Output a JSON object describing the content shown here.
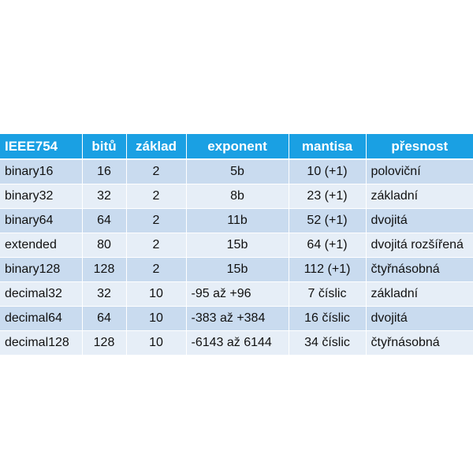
{
  "table": {
    "headers": [
      "IEEE754",
      "bitů",
      "základ",
      "exponent",
      "mantisa",
      "přesnost"
    ],
    "rows": [
      [
        "binary16",
        "16",
        "2",
        "5b",
        "10 (+1)",
        "poloviční"
      ],
      [
        "binary32",
        "32",
        "2",
        "8b",
        "23 (+1)",
        "základní"
      ],
      [
        "binary64",
        "64",
        "2",
        "11b",
        "52 (+1)",
        "dvojitá"
      ],
      [
        "extended",
        "80",
        "2",
        "15b",
        "64 (+1)",
        "dvojitá rozšířená"
      ],
      [
        "binary128",
        "128",
        "2",
        "15b",
        "112 (+1)",
        "čtyřnásobná"
      ],
      [
        "decimal32",
        "32",
        "10",
        "-95 až +96",
        "7 číslic",
        "základní"
      ],
      [
        "decimal64",
        "64",
        "10",
        "-383 až +384",
        "16 číslic",
        "dvojitá"
      ],
      [
        "decimal128",
        "128",
        "10",
        "-6143 až 6144",
        "34 číslic",
        "čtyřnásobná"
      ]
    ]
  },
  "colors": {
    "header_bg": "#1aa0e3",
    "row_odd_bg": "#c9dbef",
    "row_even_bg": "#e6eef7"
  }
}
